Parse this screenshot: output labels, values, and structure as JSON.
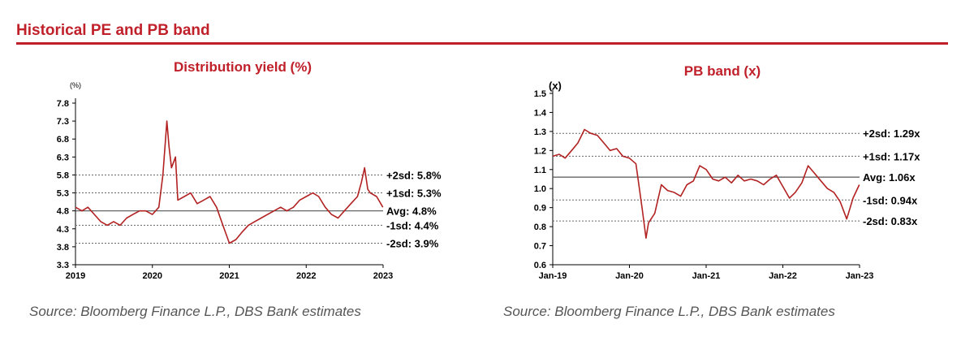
{
  "header": {
    "title": "Historical PE and PB band"
  },
  "colors": {
    "accent": "#c0202a",
    "line": "#b22222",
    "avg_line": "#555555",
    "band_line": "#666666",
    "text": "#000000",
    "source": "#555555"
  },
  "chart_data": [
    {
      "type": "line",
      "title": "Distribution yield (%)",
      "unit_label": "(%)",
      "x_ticks": [
        "2019",
        "2020",
        "2021",
        "2022",
        "2023"
      ],
      "xlim": [
        "2019-01-01",
        "2023-01-01"
      ],
      "ylim": [
        3.3,
        7.8
      ],
      "y_ticks": [
        "3.3",
        "3.8",
        "4.3",
        "4.8",
        "5.3",
        "5.8",
        "6.3",
        "6.8",
        "7.3",
        "7.8"
      ],
      "series": [
        {
          "x": [
            "2019-01-01",
            "2019-02-01",
            "2019-03-01",
            "2019-04-01",
            "2019-05-01",
            "2019-06-01",
            "2019-07-01",
            "2019-08-01",
            "2019-09-01",
            "2019-10-01",
            "2019-11-01",
            "2019-12-01",
            "2020-01-01",
            "2020-02-01",
            "2020-02-20",
            "2020-03-10",
            "2020-03-20",
            "2020-04-01",
            "2020-04-20",
            "2020-05-01",
            "2020-06-01",
            "2020-07-01",
            "2020-08-01",
            "2020-09-01",
            "2020-10-01",
            "2020-11-01",
            "2020-12-01",
            "2021-01-01",
            "2021-02-01",
            "2021-03-01",
            "2021-04-01",
            "2021-05-01",
            "2021-06-01",
            "2021-07-01",
            "2021-08-01",
            "2021-09-01",
            "2021-10-01",
            "2021-11-01",
            "2021-12-01",
            "2022-01-01",
            "2022-02-01",
            "2022-03-01",
            "2022-04-01",
            "2022-05-01",
            "2022-06-01",
            "2022-07-01",
            "2022-08-01",
            "2022-09-01",
            "2022-09-20",
            "2022-10-05",
            "2022-10-20",
            "2022-11-01",
            "2022-12-01",
            "2022-12-31"
          ],
          "y": [
            4.9,
            4.8,
            4.9,
            4.7,
            4.5,
            4.4,
            4.5,
            4.4,
            4.6,
            4.7,
            4.8,
            4.8,
            4.7,
            4.9,
            5.8,
            7.3,
            6.6,
            6.0,
            6.3,
            5.1,
            5.2,
            5.3,
            5.0,
            5.1,
            5.2,
            4.9,
            4.4,
            3.9,
            4.0,
            4.2,
            4.4,
            4.5,
            4.6,
            4.7,
            4.8,
            4.9,
            4.8,
            4.9,
            5.1,
            5.2,
            5.3,
            5.2,
            4.9,
            4.7,
            4.6,
            4.8,
            5.0,
            5.2,
            5.6,
            6.0,
            5.4,
            5.3,
            5.2,
            4.9
          ]
        }
      ],
      "band_lines": [
        {
          "label": "+2sd: 5.8%",
          "value": 5.8
        },
        {
          "label": "+1sd: 5.3%",
          "value": 5.3
        },
        {
          "label": "Avg: 4.8%",
          "value": 4.8
        },
        {
          "label": "-1sd: 4.4%",
          "value": 4.4
        },
        {
          "label": "-2sd: 3.9%",
          "value": 3.9
        }
      ],
      "source": "Source: Bloomberg Finance L.P., DBS Bank estimates"
    },
    {
      "type": "line",
      "title": "PB band (x)",
      "unit_label": "(x)",
      "x_ticks": [
        "Jan-19",
        "Jan-20",
        "Jan-21",
        "Jan-22",
        "Jan-23"
      ],
      "xlim": [
        "2019-01-01",
        "2023-01-01"
      ],
      "ylim": [
        0.6,
        1.5
      ],
      "y_ticks": [
        "0.6",
        "0.7",
        "0.8",
        "0.9",
        "1.0",
        "1.1",
        "1.2",
        "1.3",
        "1.4",
        "1.5"
      ],
      "series": [
        {
          "x": [
            "2019-01-01",
            "2019-02-01",
            "2019-03-01",
            "2019-04-01",
            "2019-05-01",
            "2019-06-01",
            "2019-07-01",
            "2019-08-01",
            "2019-09-01",
            "2019-10-01",
            "2019-11-01",
            "2019-12-01",
            "2020-01-01",
            "2020-02-01",
            "2020-03-01",
            "2020-03-20",
            "2020-04-01",
            "2020-05-01",
            "2020-06-01",
            "2020-07-01",
            "2020-08-01",
            "2020-09-01",
            "2020-10-01",
            "2020-11-01",
            "2020-12-01",
            "2021-01-01",
            "2021-02-01",
            "2021-03-01",
            "2021-04-01",
            "2021-05-01",
            "2021-06-01",
            "2021-07-01",
            "2021-08-01",
            "2021-09-01",
            "2021-10-01",
            "2021-11-01",
            "2021-12-01",
            "2022-01-01",
            "2022-02-01",
            "2022-03-01",
            "2022-04-01",
            "2022-05-01",
            "2022-06-01",
            "2022-07-01",
            "2022-08-01",
            "2022-09-01",
            "2022-10-01",
            "2022-11-01",
            "2022-12-01",
            "2022-12-31"
          ],
          "y": [
            1.17,
            1.18,
            1.16,
            1.2,
            1.24,
            1.31,
            1.29,
            1.28,
            1.24,
            1.2,
            1.21,
            1.17,
            1.16,
            1.13,
            0.9,
            0.74,
            0.82,
            0.87,
            1.02,
            0.99,
            0.98,
            0.96,
            1.02,
            1.04,
            1.12,
            1.1,
            1.05,
            1.04,
            1.06,
            1.03,
            1.07,
            1.04,
            1.05,
            1.04,
            1.02,
            1.05,
            1.07,
            1.01,
            0.95,
            0.98,
            1.03,
            1.12,
            1.08,
            1.04,
            1.0,
            0.98,
            0.93,
            0.84,
            0.95,
            1.02
          ]
        }
      ],
      "band_lines": [
        {
          "label": "+2sd: 1.29x",
          "value": 1.29
        },
        {
          "label": "+1sd: 1.17x",
          "value": 1.17
        },
        {
          "label": "Avg: 1.06x",
          "value": 1.06
        },
        {
          "label": "-1sd: 0.94x",
          "value": 0.94
        },
        {
          "label": "-2sd: 0.83x",
          "value": 0.83
        }
      ],
      "source": "Source: Bloomberg Finance L.P., DBS Bank estimates"
    }
  ]
}
